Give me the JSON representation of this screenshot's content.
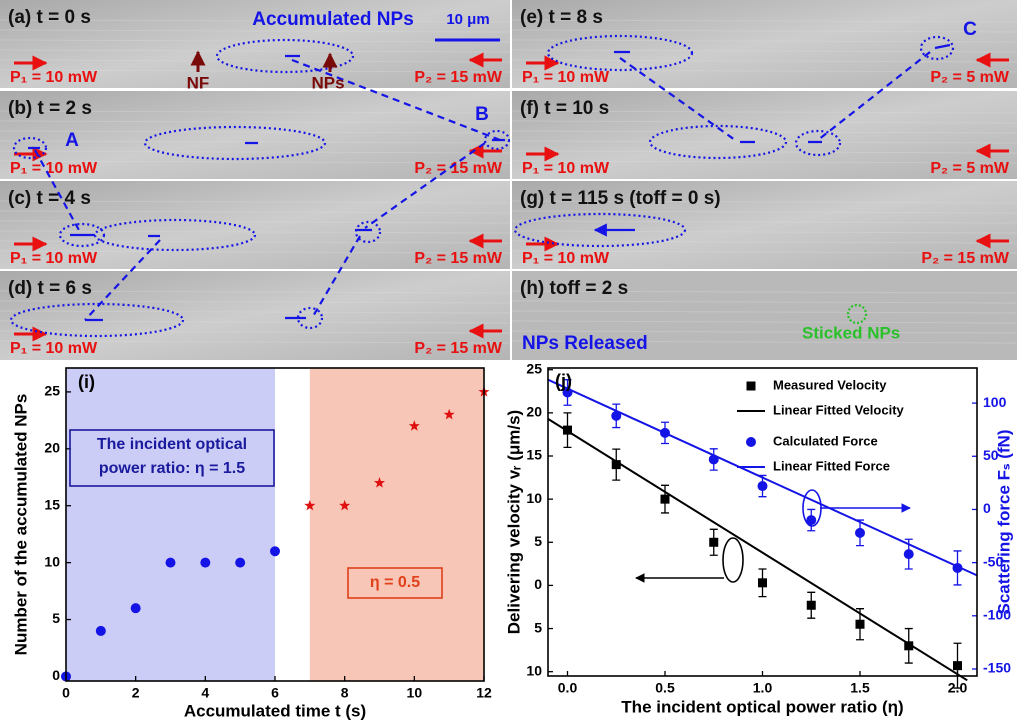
{
  "panels": [
    {
      "label": "(a) t = 0 s",
      "p1": "P₁ = 10 mW",
      "p2": "P₂ = 15 mW",
      "notes": [
        "Accumulated NPs",
        "10 μm",
        "NF",
        "NPs"
      ]
    },
    {
      "label": "(b) t = 2 s",
      "p1": "P₁ = 10 mW",
      "p2": "P₂ = 15 mW",
      "notes": [
        "A",
        "B"
      ]
    },
    {
      "label": "(c) t = 4 s",
      "p1": "P₁ = 10 mW",
      "p2": "P₂ = 15 mW"
    },
    {
      "label": "(d) t = 6 s",
      "p1": "P₁ = 10 mW",
      "p2": "P₂ = 15 mW"
    },
    {
      "label": "(e) t = 8 s",
      "p1": "P₁ = 10 mW",
      "p2": "P₂ = 5 mW",
      "notes": [
        "C"
      ]
    },
    {
      "label": "(f) t = 10 s",
      "p1": "P₁ = 10 mW",
      "p2": "P₂ = 5 mW"
    },
    {
      "label": "(g) t = 115 s (toff = 0 s)",
      "p1": "P₁ = 10 mW",
      "p2": "P₂ = 15 mW"
    },
    {
      "label": "(h) toff = 2 s",
      "notes": [
        "NPs Released",
        "Sticked NPs"
      ]
    }
  ],
  "chart_data": [
    {
      "type": "scatter",
      "panel_label": "(i)",
      "xlabel": "Accumulated time t (s)",
      "ylabel": "Number of the accumulated NPs",
      "xlim": [
        0,
        12
      ],
      "xticks": [
        0,
        2,
        4,
        6,
        8,
        10,
        12
      ],
      "ylim": [
        -0.4,
        27.1
      ],
      "yticks": [
        0,
        5,
        10,
        15,
        20,
        25
      ],
      "regions": [
        {
          "xlim": [
            0,
            6
          ],
          "color": "#cccdf6"
        },
        {
          "xlim": [
            7,
            12
          ],
          "color": "#f8c6b6"
        }
      ],
      "series": [
        {
          "color": "#1414e6",
          "marker": "circle",
          "x": [
            0,
            1,
            2,
            3,
            4,
            5,
            6
          ],
          "values": [
            0,
            4,
            6,
            10,
            10,
            10,
            11
          ]
        },
        {
          "color": "#e01010",
          "marker": "star",
          "x": [
            7,
            8,
            9,
            10,
            11,
            12
          ],
          "values": [
            15,
            15,
            17,
            22,
            23,
            25
          ]
        }
      ],
      "annotations": [
        {
          "lines": [
            "The incident optical",
            "power ratio: η = 1.5"
          ],
          "color": "#1a1a9e"
        },
        {
          "lines": [
            "η = 0.5"
          ],
          "color": "#e0401a"
        }
      ]
    },
    {
      "type": "scatter",
      "panel_label": "(j)",
      "xlabel": "The incident optical power ratio (η)",
      "ylabel": "Delivering velocity vᵣ (μm/s)",
      "y2label": "Scattering force Fₛ (fN)",
      "xlim": [
        -0.1,
        2.1
      ],
      "xticks": [
        {
          "value": 0,
          "label": "0.0"
        },
        0.5,
        {
          "value": 1,
          "label": "1.0"
        },
        1.5,
        {
          "value": 2,
          "label": "2.0"
        }
      ],
      "ylim": [
        -10.5,
        25.2
      ],
      "yticks": [
        25,
        20,
        15,
        10,
        5,
        0,
        {
          "value": -5,
          "label": "5"
        },
        {
          "value": -10,
          "label": "10"
        }
      ],
      "y2lim": [
        -156.6,
        133
      ],
      "y2ticks": [
        100,
        50,
        0,
        -50,
        -100,
        -150
      ],
      "legend": "upper right",
      "series": [
        {
          "name": "Measured Velocity",
          "color": "#000000",
          "marker": "square",
          "x": [
            0,
            0.25,
            0.5,
            0.75,
            1,
            1.25,
            1.5,
            1.75,
            2
          ],
          "values": [
            18,
            14,
            10,
            5,
            0.3,
            -2.3,
            -4.5,
            -7,
            -9.3
          ],
          "errors": [
            2,
            1.8,
            1.6,
            1.5,
            1.6,
            1.5,
            1.8,
            2,
            2.6
          ]
        },
        {
          "name": "Linear Fitted Velocity",
          "color": "#000000",
          "x": [
            -0.1,
            2.05
          ],
          "values": [
            19.3,
            -11
          ]
        },
        {
          "name": "Calculated Force",
          "color": "#1414e6",
          "marker": "circle",
          "axis": "y2",
          "x": [
            0,
            0.25,
            0.5,
            0.75,
            1,
            1.25,
            1.5,
            1.75,
            2
          ],
          "values": [
            110,
            88,
            72,
            47,
            22,
            -10,
            -22,
            -42,
            -55
          ],
          "errors": [
            12,
            11,
            10,
            10,
            10,
            10,
            12,
            14,
            16
          ]
        },
        {
          "name": "Linear Fitted Force",
          "color": "#1414e6",
          "axis": "y2",
          "x": [
            -0.1,
            2.1
          ],
          "values": [
            122,
            -62
          ]
        }
      ]
    }
  ]
}
